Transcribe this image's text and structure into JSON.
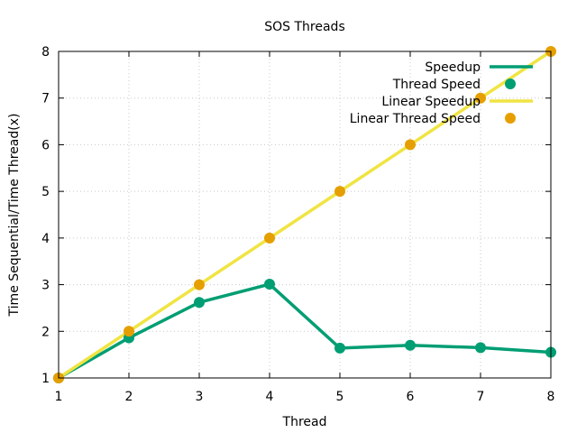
{
  "chart_data": {
    "type": "line",
    "title": "SOS Threads",
    "xlabel": "Thread",
    "ylabel": "Time Sequential/Time Thread(x)",
    "xlim": [
      1,
      8
    ],
    "ylim": [
      1,
      8
    ],
    "xticks": [
      1,
      2,
      3,
      4,
      5,
      6,
      7,
      8
    ],
    "yticks": [
      1,
      2,
      3,
      4,
      5,
      6,
      7,
      8
    ],
    "grid": true,
    "legend_position": "top-right",
    "series": [
      {
        "name": "Speedup",
        "style": "line",
        "color": "#009e73",
        "x": [
          1,
          2,
          3,
          4,
          5,
          6,
          7,
          8
        ],
        "y": [
          1.0,
          1.86,
          2.62,
          3.01,
          1.64,
          1.7,
          1.65,
          1.55
        ]
      },
      {
        "name": "Thread Speed",
        "style": "points",
        "color": "#009e73",
        "x": [
          1,
          2,
          3,
          4,
          5,
          6,
          7,
          8
        ],
        "y": [
          1.0,
          1.86,
          2.62,
          3.01,
          1.64,
          1.7,
          1.65,
          1.55
        ]
      },
      {
        "name": "Linear Speedup",
        "style": "line",
        "color": "#f0e442",
        "x": [
          1,
          2,
          3,
          4,
          5,
          6,
          7,
          8
        ],
        "y": [
          1,
          2,
          3,
          4,
          5,
          6,
          7,
          8
        ]
      },
      {
        "name": "Linear Thread Speed",
        "style": "points",
        "color": "#e69f00",
        "x": [
          1,
          2,
          3,
          4,
          5,
          6,
          7,
          8
        ],
        "y": [
          1,
          2,
          3,
          4,
          5,
          6,
          7,
          8
        ]
      }
    ]
  }
}
